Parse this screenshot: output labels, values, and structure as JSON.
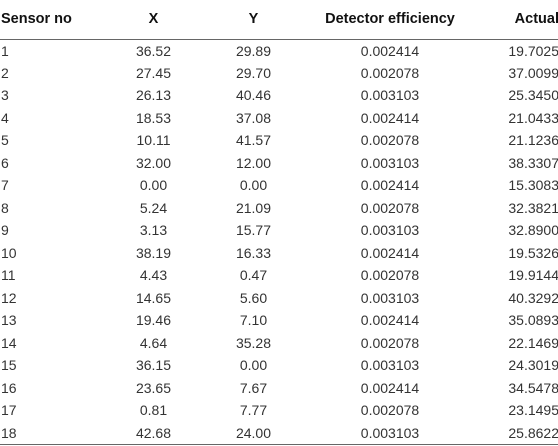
{
  "table": {
    "headers": [
      "Sensor no",
      "X",
      "Y",
      "Detector efficiency",
      "Actual"
    ],
    "rows": [
      [
        "1",
        "36.52",
        "29.89",
        "0.002414",
        "19.7025"
      ],
      [
        "2",
        "27.45",
        "29.70",
        "0.002078",
        "37.0099"
      ],
      [
        "3",
        "26.13",
        "40.46",
        "0.003103",
        "25.3450"
      ],
      [
        "4",
        "18.53",
        "37.08",
        "0.002414",
        "21.0433"
      ],
      [
        "5",
        "10.11",
        "41.57",
        "0.002078",
        "21.1236"
      ],
      [
        "6",
        "32.00",
        "12.00",
        "0.003103",
        "38.3307"
      ],
      [
        "7",
        "0.00",
        "0.00",
        "0.002414",
        "15.3083"
      ],
      [
        "8",
        "5.24",
        "21.09",
        "0.002078",
        "32.3821"
      ],
      [
        "9",
        "3.13",
        "15.77",
        "0.003103",
        "32.8900"
      ],
      [
        "10",
        "38.19",
        "16.33",
        "0.002414",
        "19.5326"
      ],
      [
        "11",
        "4.43",
        "0.47",
        "0.002078",
        "19.9144"
      ],
      [
        "12",
        "14.65",
        "5.60",
        "0.003103",
        "40.3292"
      ],
      [
        "13",
        "19.46",
        "7.10",
        "0.002414",
        "35.0893"
      ],
      [
        "14",
        "4.64",
        "35.28",
        "0.002078",
        "22.1469"
      ],
      [
        "15",
        "36.15",
        "0.00",
        "0.003103",
        "24.3019"
      ],
      [
        "16",
        "23.65",
        "7.67",
        "0.002414",
        "34.5478"
      ],
      [
        "17",
        "0.81",
        "7.77",
        "0.002078",
        "23.1495"
      ],
      [
        "18",
        "42.68",
        "24.00",
        "0.003103",
        "25.8622"
      ]
    ]
  }
}
